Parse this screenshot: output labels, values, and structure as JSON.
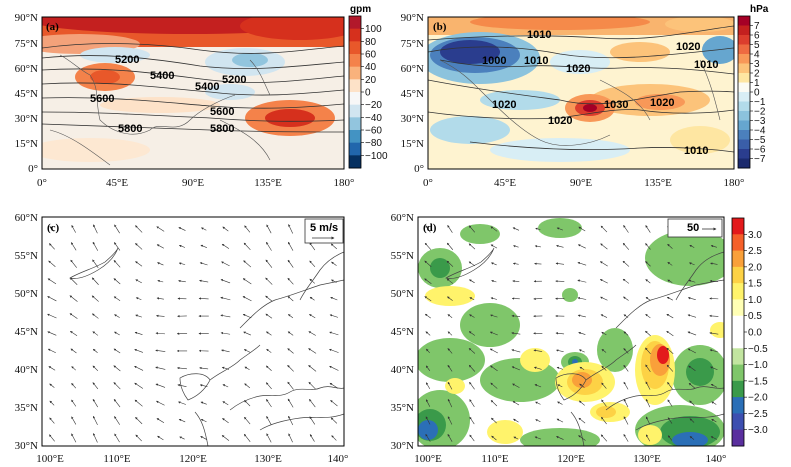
{
  "panels": {
    "a": {
      "label": "(a)",
      "x_ticks": [
        "0°",
        "45°E",
        "90°E",
        "135°E",
        "180°"
      ],
      "y_ticks": [
        "90°N",
        "75°N",
        "60°N",
        "45°N",
        "30°N",
        "15°N",
        "0°"
      ],
      "contour_labels": [
        "5200",
        "5400",
        "5400",
        "5200",
        "5600",
        "5600",
        "5800",
        "5800"
      ],
      "colorbar": {
        "unit": "gpm",
        "ticks": [
          "100",
          "80",
          "60",
          "40",
          "20",
          "0",
          "−20",
          "−40",
          "−60",
          "−80",
          "−100"
        ],
        "colors": [
          "#b2182b",
          "#d6301d",
          "#e8582a",
          "#f4824a",
          "#f9b27c",
          "#fde2c8",
          "#f7f7f7",
          "#d1e5f0",
          "#92c5de",
          "#4393c3",
          "#2166ac",
          "#053061"
        ]
      }
    },
    "b": {
      "label": "(b)",
      "x_ticks": [
        "0°",
        "45°E",
        "90°E",
        "135°E",
        "180°"
      ],
      "y_ticks": [
        "90°N",
        "75°N",
        "60°N",
        "45°N",
        "30°N",
        "15°N",
        "0°"
      ],
      "contour_labels": [
        "1010",
        "1020",
        "1000",
        "1010",
        "1020",
        "1010",
        "1020",
        "1030",
        "1020",
        "1020",
        "1010"
      ],
      "colorbar": {
        "unit": "hPa",
        "ticks": [
          "7",
          "6",
          "5",
          "4",
          "3",
          "2",
          "1",
          "0",
          "−1",
          "−2",
          "−3",
          "−4",
          "−5",
          "−6",
          "−7"
        ],
        "colors": [
          "#a50026",
          "#c4201f",
          "#dc3d2d",
          "#ee6a41",
          "#f89858",
          "#fcc37a",
          "#fee6a2",
          "#fbfbf4",
          "#d8eef5",
          "#b2dbea",
          "#8cc3dd",
          "#66a6cf",
          "#4b80bd",
          "#3a5ea8",
          "#2a3d8e",
          "#1b2a6e"
        ]
      }
    },
    "c": {
      "label": "(c)",
      "x_ticks": [
        "100°E",
        "110°E",
        "120°E",
        "130°E",
        "140°"
      ],
      "y_ticks": [
        "60°N",
        "55°N",
        "50°N",
        "45°N",
        "40°N",
        "35°N",
        "30°N"
      ],
      "ref_vector": "5 m/s"
    },
    "d": {
      "label": "(d)",
      "x_ticks": [
        "100°E",
        "110°E",
        "120°E",
        "130°E",
        "140°"
      ],
      "y_ticks": [
        "60°N",
        "55°N",
        "50°N",
        "45°N",
        "40°N",
        "35°N",
        "30°N"
      ],
      "ref_vector": "50",
      "colorbar": {
        "ticks": [
          "3.0",
          "2.5",
          "2.0",
          "1.5",
          "1.0",
          "0.5",
          "0.0",
          "−0.5",
          "−1.0",
          "−1.5",
          "−2.0",
          "−2.5",
          "−3.0"
        ],
        "colors": [
          "#e31a1c",
          "#f5602a",
          "#f9a03a",
          "#fdd245",
          "#fff36b",
          "#ffffb5",
          "#ffffff",
          "#ffffff",
          "#c2e5a0",
          "#7fc66a",
          "#3a9a4a",
          "#2b6fb7",
          "#3d4fb0",
          "#5a2f9e"
        ]
      }
    }
  }
}
